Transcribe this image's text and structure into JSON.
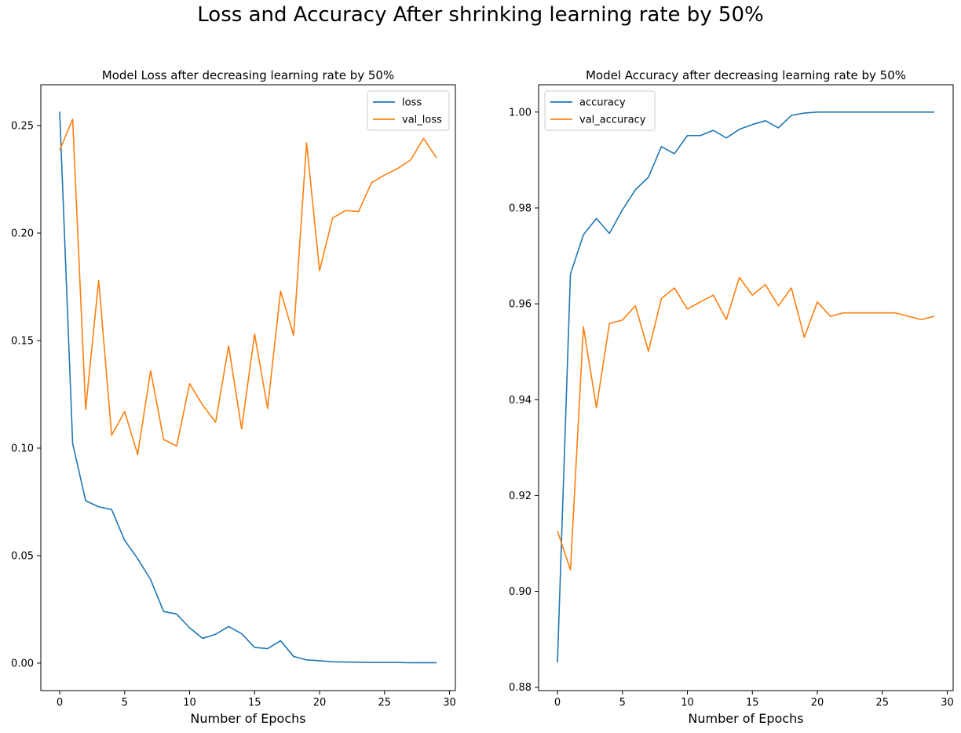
{
  "suptitle": "Loss and Accuracy After shrinking learning rate by 50%",
  "chart_data": [
    {
      "type": "line",
      "title": "Model Loss after decreasing learning rate by 50%",
      "xlabel": "Number of Epochs",
      "ylabel": "",
      "x": [
        0,
        1,
        2,
        3,
        4,
        5,
        6,
        7,
        8,
        9,
        10,
        11,
        12,
        13,
        14,
        15,
        16,
        17,
        18,
        19,
        20,
        21,
        22,
        23,
        24,
        25,
        26,
        27,
        28,
        29
      ],
      "xlim": [
        -1.45,
        30.45
      ],
      "ylim": [
        -0.0128,
        0.269
      ],
      "xticks": [
        0,
        5,
        10,
        15,
        20,
        25,
        30
      ],
      "yticks": [
        0.0,
        0.05,
        0.1,
        0.15,
        0.2,
        0.25
      ],
      "ytick_labels": [
        "0.00",
        "0.05",
        "0.10",
        "0.15",
        "0.20",
        "0.25"
      ],
      "xtick_labels": [
        "0",
        "5",
        "10",
        "15",
        "20",
        "25",
        "30"
      ],
      "legend_position": "top-right",
      "grid": false,
      "series": [
        {
          "name": "loss",
          "color": "#1f77b4",
          "values": [
            0.2565,
            0.1021,
            0.0755,
            0.0727,
            0.0714,
            0.0571,
            0.0486,
            0.0388,
            0.024,
            0.0228,
            0.0164,
            0.0115,
            0.0134,
            0.017,
            0.0137,
            0.0073,
            0.0067,
            0.0104,
            0.0031,
            0.0015,
            0.0011,
            0.0006,
            0.0005,
            0.0004,
            0.0003,
            0.0003,
            0.0003,
            0.0002,
            0.0002,
            0.0002
          ]
        },
        {
          "name": "val_loss",
          "color": "#ff7f0e",
          "values": [
            0.2385,
            0.253,
            0.118,
            0.178,
            0.106,
            0.117,
            0.097,
            0.136,
            0.104,
            0.101,
            0.13,
            0.12,
            0.112,
            0.1475,
            0.109,
            0.153,
            0.1185,
            0.173,
            0.1525,
            0.242,
            0.1825,
            0.207,
            0.2105,
            0.21,
            0.2235,
            0.227,
            0.23,
            0.234,
            0.244,
            0.235
          ]
        }
      ]
    },
    {
      "type": "line",
      "title": "Model Accuracy after decreasing learning rate by 50%",
      "xlabel": "Number of Epochs",
      "ylabel": "",
      "x": [
        0,
        1,
        2,
        3,
        4,
        5,
        6,
        7,
        8,
        9,
        10,
        11,
        12,
        13,
        14,
        15,
        16,
        17,
        18,
        19,
        20,
        21,
        22,
        23,
        24,
        25,
        26,
        27,
        28,
        29
      ],
      "xlim": [
        -1.45,
        30.45
      ],
      "ylim": [
        0.8793,
        1.0057
      ],
      "xticks": [
        0,
        5,
        10,
        15,
        20,
        25,
        30
      ],
      "yticks": [
        0.88,
        0.9,
        0.92,
        0.94,
        0.96,
        0.98,
        1.0
      ],
      "ytick_labels": [
        "0.88",
        "0.90",
        "0.92",
        "0.94",
        "0.96",
        "0.98",
        "1.00"
      ],
      "xtick_labels": [
        "0",
        "5",
        "10",
        "15",
        "20",
        "25",
        "30"
      ],
      "legend_position": "top-left",
      "grid": false,
      "series": [
        {
          "name": "accuracy",
          "color": "#1f77b4",
          "values": [
            0.8852,
            0.9662,
            0.9744,
            0.9778,
            0.9747,
            0.9796,
            0.9838,
            0.9864,
            0.9928,
            0.9913,
            0.9951,
            0.9951,
            0.9962,
            0.9946,
            0.9964,
            0.9974,
            0.9982,
            0.9967,
            0.9993,
            0.9998,
            1.0,
            1.0,
            1.0,
            1.0,
            1.0,
            1.0,
            1.0,
            1.0,
            1.0,
            1.0
          ]
        },
        {
          "name": "val_accuracy",
          "color": "#ff7f0e",
          "values": [
            0.9126,
            0.9045,
            0.9552,
            0.9383,
            0.9559,
            0.9566,
            0.9596,
            0.9501,
            0.9611,
            0.9633,
            0.9589,
            0.9604,
            0.9618,
            0.9567,
            0.9655,
            0.9618,
            0.964,
            0.9596,
            0.9633,
            0.953,
            0.9604,
            0.9574,
            0.9581,
            0.9581,
            0.9581,
            0.9581,
            0.9581,
            0.9574,
            0.9567,
            0.9574
          ]
        }
      ]
    }
  ]
}
